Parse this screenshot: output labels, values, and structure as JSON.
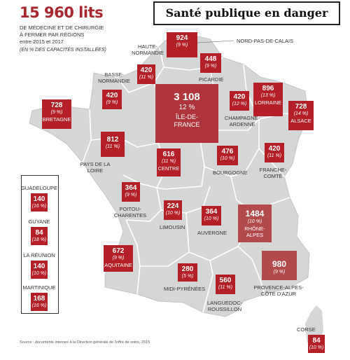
{
  "banner": "Santé publique en danger",
  "headline": {
    "total": "15 960 lits",
    "line1": "de médecine et de chirurgie",
    "line2": "à fermer par régions",
    "line3": "entre 2015 et 2017",
    "note": "(en % des capacités installées)"
  },
  "regions": [
    {
      "id": "nord-pas-de-calais",
      "name": "Nord-Pas-de-Calais",
      "value": "924",
      "pct": "(9 %)"
    },
    {
      "id": "haute-normandie",
      "name": "Haute-Normandie",
      "value": "420",
      "pct": "(11 %)"
    },
    {
      "id": "picardie",
      "name": "Picardie",
      "value": "448",
      "pct": "(9 %)"
    },
    {
      "id": "basse-normandie",
      "name": "Basse-Normandie",
      "value": "420",
      "pct": "(9 %)"
    },
    {
      "id": "ile-de-france",
      "name": "Île-de-France",
      "value": "3 108",
      "pct": "12 %"
    },
    {
      "id": "champagne-ardenne",
      "name": "Champagne-Ardenne",
      "value": "420",
      "pct": "(12 %)"
    },
    {
      "id": "lorraine",
      "name": "Lorraine",
      "value": "896",
      "pct": "(13 %)"
    },
    {
      "id": "alsace",
      "name": "Alsace",
      "value": "728",
      "pct": "(14 %)"
    },
    {
      "id": "bretagne",
      "name": "Bretagne",
      "value": "728",
      "pct": "(9 %)"
    },
    {
      "id": "pays-de-la-loire",
      "name": "Pays de la Loire",
      "value": "812",
      "pct": "(11 %)"
    },
    {
      "id": "centre",
      "name": "Centre",
      "value": "616",
      "pct": "(11 %)"
    },
    {
      "id": "bourgogne",
      "name": "Bourgogne",
      "value": "476",
      "pct": "(10 %)"
    },
    {
      "id": "franche-comte",
      "name": "Franche-Comté",
      "value": "420",
      "pct": "(11 %)"
    },
    {
      "id": "poitou-charentes",
      "name": "Poitou-Charentes",
      "value": "364",
      "pct": "(9 %)"
    },
    {
      "id": "limousin",
      "name": "Limousin",
      "value": "224",
      "pct": "(10 %)"
    },
    {
      "id": "auvergne",
      "name": "Auvergne",
      "value": "364",
      "pct": "(10 %)"
    },
    {
      "id": "rhone-alpes",
      "name": "Rhône-Alpes",
      "value": "1484",
      "pct": "(10 %)"
    },
    {
      "id": "aquitaine",
      "name": "Aquitaine",
      "value": "672",
      "pct": "(9 %)"
    },
    {
      "id": "midi-pyrenees",
      "name": "Midi-Pyrénées",
      "value": "280",
      "pct": "(5 %)"
    },
    {
      "id": "languedoc-roussillon",
      "name": "Languedoc-Roussillon",
      "value": "560",
      "pct": "(11 %)"
    },
    {
      "id": "provence-alpes-cote-d-azur",
      "name": "Provence-Alpes-Côte d'Azur",
      "value": "980",
      "pct": "(9 %)"
    },
    {
      "id": "corse",
      "name": "Corse",
      "value": "84",
      "pct": "(10 %)"
    }
  ],
  "overseas": [
    {
      "id": "guadeloupe",
      "name": "Guadeloupe",
      "value": "140",
      "pct": "(16 %)"
    },
    {
      "id": "guyane",
      "name": "Guyane",
      "value": "84",
      "pct": "(18 %)"
    },
    {
      "id": "la-reunion",
      "name": "La Réunion",
      "value": "140",
      "pct": "(10 %)"
    },
    {
      "id": "martinique",
      "name": "Martinique",
      "value": "168",
      "pct": "(16 %)"
    }
  ],
  "source": "Source : documents internes à la Direction générale de l'offre de soins, 2015",
  "colors": {
    "box": "#b31f25",
    "map_fill": "#d6d6d6",
    "map_border": "#ffffff",
    "headline": "#a8262d"
  }
}
